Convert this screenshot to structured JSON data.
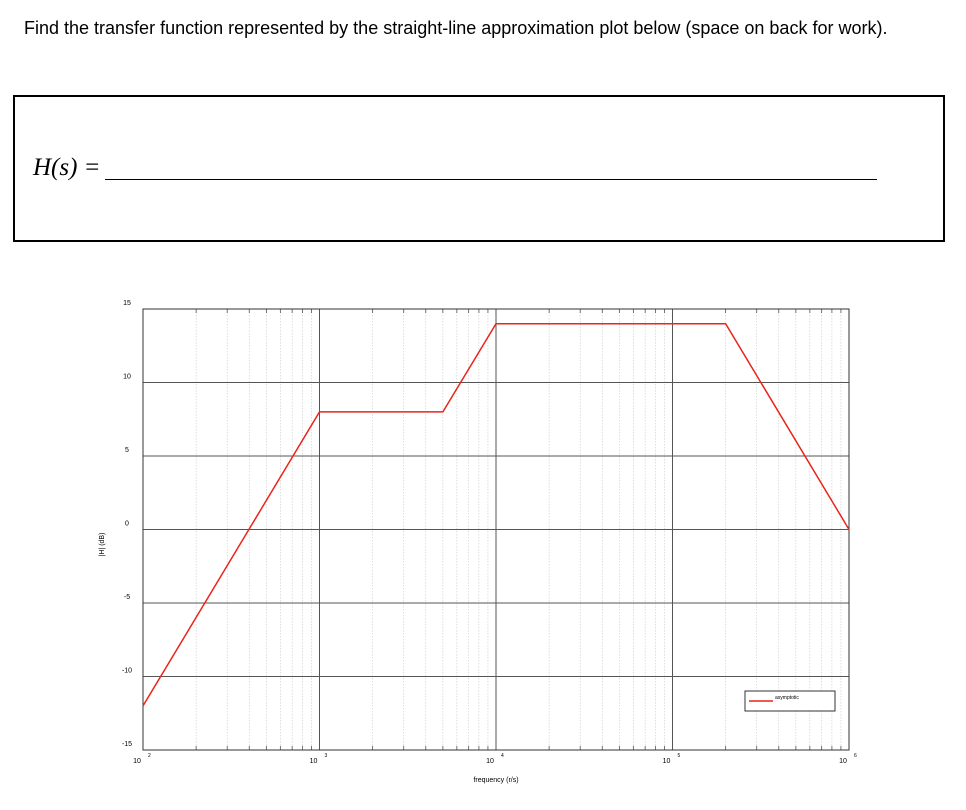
{
  "question": {
    "text": "Find the transfer function represented by the straight-line approximation plot below (space on back for work)."
  },
  "answer": {
    "label": "H(s) ="
  },
  "chart_data": {
    "type": "line",
    "xscale": "log",
    "xlim": [
      100,
      1000000
    ],
    "ylim": [
      -15,
      15
    ],
    "grid": true,
    "xlabel": "frequency (r/s)",
    "ylabel": "|H| (dB)",
    "x_ticks": [
      {
        "base": "10",
        "exp": "2",
        "value": 100
      },
      {
        "base": "10",
        "exp": "3",
        "value": 1000
      },
      {
        "base": "10",
        "exp": "4",
        "value": 10000
      },
      {
        "base": "10",
        "exp": "5",
        "value": 100000
      },
      {
        "base": "10",
        "exp": "6",
        "value": 1000000
      }
    ],
    "y_ticks": [
      {
        "label": "15",
        "value": 15
      },
      {
        "label": "10",
        "value": 10
      },
      {
        "label": "5",
        "value": 5
      },
      {
        "label": "0",
        "value": 0
      },
      {
        "label": "-5",
        "value": -5
      },
      {
        "label": "-10",
        "value": -10
      },
      {
        "label": "-15",
        "value": -15
      }
    ],
    "legend_position": "bottom-right",
    "series": [
      {
        "name": "asymptotic",
        "color": "#e8251b",
        "x": [
          100,
          1000,
          5000,
          10000,
          200000,
          1000000
        ],
        "y": [
          -12,
          8,
          8,
          14,
          14,
          0
        ]
      }
    ]
  }
}
